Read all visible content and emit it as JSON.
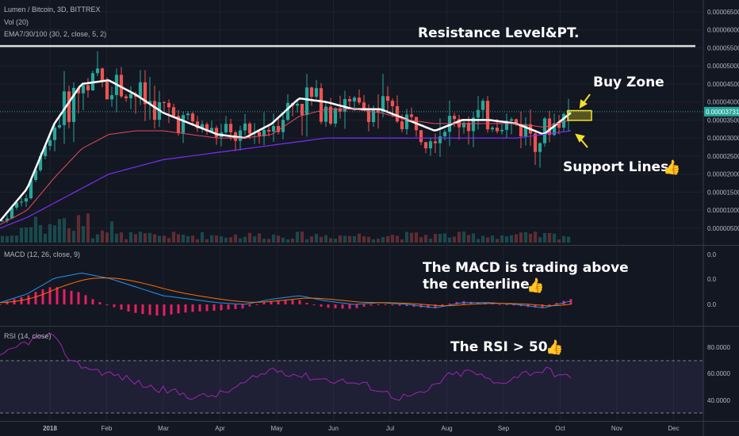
{
  "legend": {
    "symbol": "Lumen / Bitcoin, 3D, BITTREX",
    "vol": "Vol (20)",
    "ema": "EMA7/30/100 (30, 2, close, 5, 2)",
    "macd": "MACD (12, 26, close, 9)",
    "rsi": "RSI (14, close)"
  },
  "annotations": {
    "resistance": "Resistance Level&PT.",
    "buy_zone": "Buy Zone",
    "support": "Support Lines",
    "macd_line1": "The MACD is trading above",
    "macd_line2": "the centerline",
    "rsi": "The RSI > 50",
    "thumb": "👍"
  },
  "price_axis": {
    "ticks": [
      "0.00006500",
      "0.00006000",
      "0.00005500",
      "0.00005000",
      "0.00004500",
      "0.00004000",
      "0.00003500",
      "0.00003000",
      "0.00002500",
      "0.00002000",
      "0.00001500",
      "0.00001000",
      "0.00000500"
    ],
    "current": "0.00003731"
  },
  "macd_axis": {
    "ticks": [
      "0.0",
      "0.0",
      "0.0"
    ]
  },
  "rsi_axis": {
    "ticks": [
      "80.0000",
      "60.0000",
      "40.0000"
    ]
  },
  "time_axis": {
    "ticks": [
      "2018",
      "Feb",
      "Mar",
      "Apr",
      "May",
      "Jun",
      "Jul",
      "Aug",
      "Sep",
      "Oct",
      "Nov",
      "Dec"
    ]
  },
  "colors": {
    "up": "#26a69a",
    "down": "#ef5350",
    "ema_fast": "#ffffff",
    "ema_mid": "#e84a5f",
    "ema_slow": "#7b2ff7",
    "macd": "#2196f3",
    "signal": "#ff6d00",
    "hist": "#e91e63",
    "rsi": "#8e44ad",
    "resistance": "#e0e0e0",
    "buy_zone": "#f5e12b",
    "current_price": "#26a69a"
  },
  "chart_data": {
    "type": "line",
    "title": "Lumen / Bitcoin, 3D, BITTREX",
    "y_axis_range": [
      3e-06,
      6.65e-05
    ],
    "resistance_level": 5.55e-05,
    "current_price": 3.731e-05,
    "buy_zone": [
      3.49e-05,
      3.76e-05
    ],
    "x_labels": [
      "2018",
      "Feb",
      "Mar",
      "Apr",
      "May",
      "Jun",
      "Jul",
      "Aug",
      "Sep",
      "Oct",
      "Nov",
      "Dec"
    ],
    "series": [
      {
        "name": "EMA7",
        "values": [
          7e-06,
          1.6e-05,
          3.4e-05,
          4.5e-05,
          4.6e-05,
          4.2e-05,
          3.7e-05,
          3.4e-05,
          3.1e-05,
          3e-05,
          3.4e-05,
          4.1e-05,
          4e-05,
          3.8e-05,
          3.8e-05,
          3.5e-05,
          3.2e-05,
          3.5e-05,
          3.5e-05,
          3.4e-05,
          3.1e-05,
          3.7e-05
        ]
      },
      {
        "name": "EMA30",
        "values": [
          6e-06,
          1e-05,
          1.9e-05,
          2.7e-05,
          3.1e-05,
          3.2e-05,
          3.2e-05,
          3.1e-05,
          3e-05,
          3e-05,
          3.1e-05,
          3.6e-05,
          3.8e-05,
          3.8e-05,
          3.7e-05,
          3.5e-05,
          3.4e-05,
          3.4e-05,
          3.4e-05,
          3.4e-05,
          3.3e-05,
          3.5e-05
        ]
      },
      {
        "name": "EMA100",
        "values": [
          5e-06,
          8e-06,
          1.2e-05,
          1.6e-05,
          2e-05,
          2.2e-05,
          2.4e-05,
          2.5e-05,
          2.6e-05,
          2.7e-05,
          2.8e-05,
          2.9e-05,
          3e-05,
          3e-05,
          3e-05,
          3e-05,
          3e-05,
          3e-05,
          3e-05,
          3e-05,
          3.1e-05,
          3.2e-05
        ]
      },
      {
        "name": "RSI",
        "values": [
          72,
          84,
          90,
          68,
          62,
          57,
          50,
          46,
          42,
          45,
          54,
          64,
          59,
          56,
          54,
          50,
          42,
          44,
          58,
          62,
          52,
          60,
          63,
          56
        ]
      }
    ]
  }
}
